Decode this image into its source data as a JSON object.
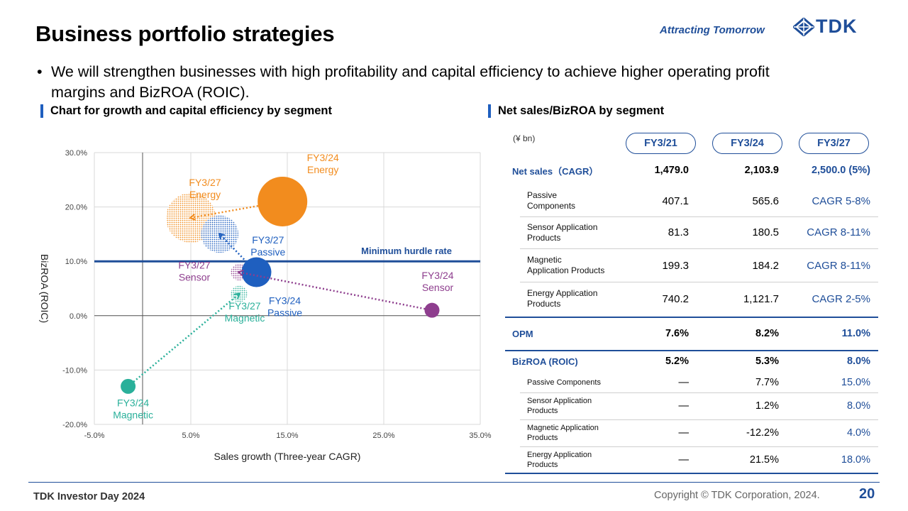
{
  "header": {
    "title": "Business portfolio strategies",
    "tagline": "Attracting Tomorrow",
    "logo_text": "TDK"
  },
  "bullet": {
    "line1": "We will strengthen businesses with high profitability and capital efficiency to achieve higher operating profit",
    "line2": "margins and BizROA (ROIC)."
  },
  "sections": {
    "left": "Chart for growth and capital efficiency by segment",
    "right": "Net sales/BizROA by segment"
  },
  "colors": {
    "energy": "#f28c1e",
    "passive": "#1f5fbf",
    "sensor": "#8e3e8e",
    "magnetic": "#2ab09a",
    "brand": "#1f4e99"
  },
  "chart_data": {
    "type": "bubble",
    "xlabel": "Sales growth (Three-year CAGR)",
    "ylabel": "BizROA (ROIC)",
    "xlim": [
      -5,
      35
    ],
    "ylim": [
      -20,
      30
    ],
    "xticks": [
      "-5.0%",
      "5.0%",
      "15.0%",
      "25.0%",
      "35.0%"
    ],
    "yticks": [
      "30.0%",
      "20.0%",
      "10.0%",
      "0.0%",
      "-10.0%",
      "-20.0%"
    ],
    "hurdle": {
      "label": "Minimum hurdle rate",
      "y": 10
    },
    "points": [
      {
        "segment": "energy",
        "period": "FY3/24",
        "label1": "FY3/24",
        "label2": "Energy",
        "x": 14.5,
        "y": 21,
        "rel_size": 1.0,
        "hatched": false
      },
      {
        "segment": "energy",
        "period": "FY3/27",
        "label1": "FY3/27",
        "label2": "Energy",
        "x": 5,
        "y": 18,
        "rel_size": 1.0,
        "hatched": true
      },
      {
        "segment": "passive",
        "period": "FY3/24",
        "label1": "FY3/24",
        "label2": "Passive",
        "x": 11.8,
        "y": 8,
        "rel_size": 0.6,
        "hatched": false
      },
      {
        "segment": "passive",
        "period": "FY3/27",
        "label1": "FY3/27",
        "label2": "Passive",
        "x": 8,
        "y": 15,
        "rel_size": 0.75,
        "hatched": true
      },
      {
        "segment": "sensor",
        "period": "FY3/24",
        "label1": "FY3/24",
        "label2": "Sensor",
        "x": 30,
        "y": 1,
        "rel_size": 0.3,
        "hatched": false
      },
      {
        "segment": "sensor",
        "period": "FY3/27",
        "label1": "FY3/27",
        "label2": "Sensor",
        "x": 10,
        "y": 8,
        "rel_size": 0.33,
        "hatched": true
      },
      {
        "segment": "magnetic",
        "period": "FY3/24",
        "label1": "FY3/24",
        "label2": "Magnetic",
        "x": -1.5,
        "y": -13,
        "rel_size": 0.3,
        "hatched": false
      },
      {
        "segment": "magnetic",
        "period": "FY3/27",
        "label1": "FY3/27",
        "label2": "Magnetic",
        "x": 10,
        "y": 4,
        "rel_size": 0.33,
        "hatched": true
      }
    ],
    "arrows": [
      {
        "segment": "energy",
        "from": [
          14.5,
          21
        ],
        "to": [
          5,
          18
        ]
      },
      {
        "segment": "passive",
        "from": [
          11.8,
          8
        ],
        "to": [
          8,
          15
        ]
      },
      {
        "segment": "sensor",
        "from": [
          30,
          1
        ],
        "to": [
          10,
          8
        ]
      },
      {
        "segment": "magnetic",
        "from": [
          -1.5,
          -13
        ],
        "to": [
          10,
          4
        ]
      }
    ]
  },
  "table": {
    "unit": "(¥ bn)",
    "years": [
      "FY3/21",
      "FY3/24",
      "FY3/27"
    ],
    "net_sales": {
      "label": "Net sales（CAGR）",
      "values": [
        "1,479.0",
        "2,103.9",
        "2,500.0 (5%)"
      ]
    },
    "sales_rows": [
      {
        "label1": "Passive",
        "label2": "Components",
        "v1": "407.1",
        "v2": "565.6",
        "v3": "CAGR 5-8%"
      },
      {
        "label1": "Sensor Application",
        "label2": "Products",
        "v1": "81.3",
        "v2": "180.5",
        "v3": "CAGR 8-11%"
      },
      {
        "label1": "Magnetic",
        "label2": "Application Products",
        "v1": "199.3",
        "v2": "184.2",
        "v3": "CAGR 8-11%"
      },
      {
        "label1": "Energy Application",
        "label2": "Products",
        "v1": "740.2",
        "v2": "1,121.7",
        "v3": "CAGR 2-5%"
      }
    ],
    "opm": {
      "label": "OPM",
      "values": [
        "7.6%",
        "8.2%",
        "11.0%"
      ]
    },
    "bizroa": {
      "label": "BizROA (ROIC)",
      "values": [
        "5.2%",
        "5.3%",
        "8.0%"
      ]
    },
    "bizroa_rows": [
      {
        "label1": "Passive Components",
        "label2": "",
        "v1": "—",
        "v2": "7.7%",
        "v3": "15.0%"
      },
      {
        "label1": "Sensor Application",
        "label2": "Products",
        "v1": "—",
        "v2": "1.2%",
        "v3": "8.0%"
      },
      {
        "label1": "Magnetic Application",
        "label2": "Products",
        "v1": "—",
        "v2": "-12.2%",
        "v3": "4.0%"
      },
      {
        "label1": "Energy Application",
        "label2": "Products",
        "v1": "—",
        "v2": "21.5%",
        "v3": "18.0%"
      }
    ]
  },
  "footer": {
    "event": "TDK Investor Day 2024",
    "copyright": "Copyright  © TDK Corporation, 2024.",
    "page": "20"
  }
}
